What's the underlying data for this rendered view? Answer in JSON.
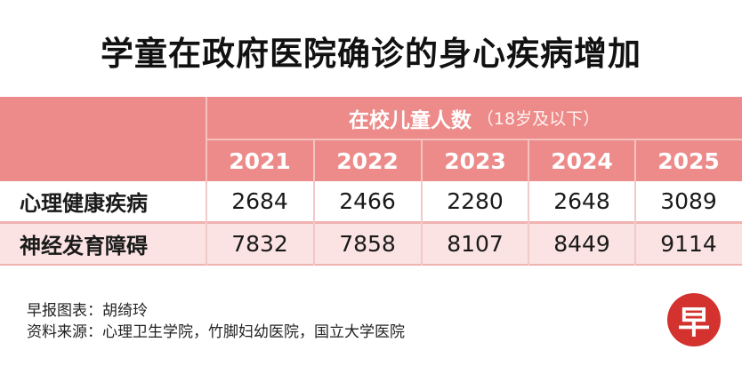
{
  "title": "学童在政府医院确诊的身心疾病增加",
  "chart_data": {
    "type": "table",
    "column_group": "在校儿童人数",
    "column_group_note": "（18岁及以下）",
    "columns": [
      "2021",
      "2022",
      "2023",
      "2024",
      "2025"
    ],
    "rows": [
      {
        "label": "心理健康疾病",
        "values": [
          "2684",
          "2466",
          "2280",
          "2648",
          "3089"
        ]
      },
      {
        "label": "神经发育障碍",
        "values": [
          "7832",
          "7858",
          "8107",
          "8449",
          "9114"
        ]
      }
    ]
  },
  "footer": {
    "chart_by_label": "早报图表：",
    "chart_by": "胡绮玲",
    "source_label": "资料来源：",
    "source": "心理卫生学院，竹脚妇幼医院，国立大学医院"
  },
  "logo": {
    "glyph": "早",
    "color": "#d3322e"
  },
  "colors": {
    "header": "#ec8b89",
    "row_alt": "#fbe3e3"
  }
}
